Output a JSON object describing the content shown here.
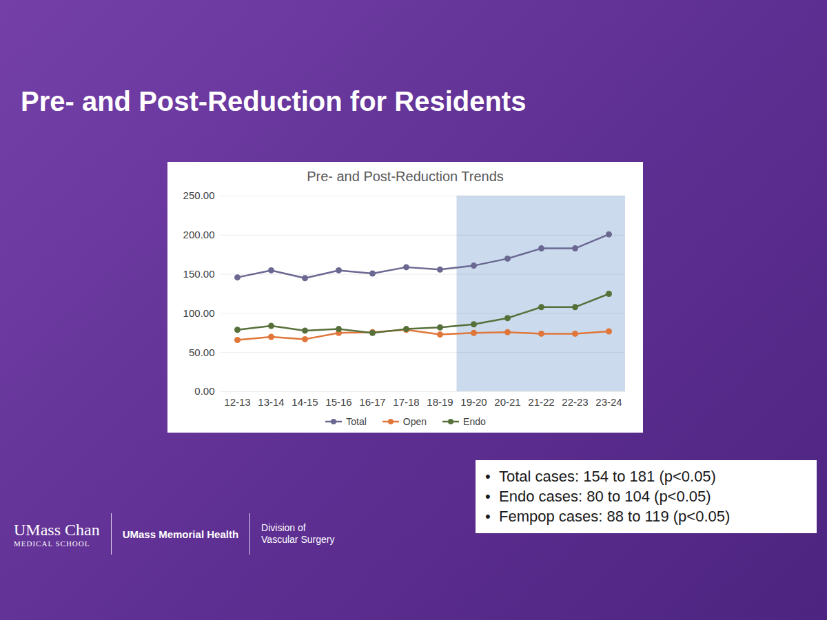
{
  "heading": "Pre- and Post-Reduction for Residents",
  "chart_data": {
    "type": "line",
    "title": "Pre- and Post-Reduction Trends",
    "categories": [
      "12-13",
      "13-14",
      "14-15",
      "15-16",
      "16-17",
      "17-18",
      "18-19",
      "19-20",
      "20-21",
      "21-22",
      "22-23",
      "23-24"
    ],
    "series": [
      {
        "name": "Total",
        "color": "#6a6891",
        "marker": "circle",
        "values": [
          146,
          155,
          145,
          155,
          151,
          159,
          156,
          161,
          170,
          183,
          183,
          201
        ]
      },
      {
        "name": "Open",
        "color": "#e0763a",
        "marker": "circle",
        "values": [
          66,
          70,
          67,
          75,
          76,
          79,
          73,
          75,
          76,
          74,
          74,
          77
        ]
      },
      {
        "name": "Endo",
        "color": "#57703a",
        "marker": "circle",
        "values": [
          79,
          84,
          78,
          80,
          75,
          80,
          82,
          86,
          94,
          108,
          108,
          125
        ]
      }
    ],
    "ylim": [
      0,
      250
    ],
    "yticks": [
      {
        "value": 0,
        "label": "0.00"
      },
      {
        "value": 50,
        "label": "50.00"
      },
      {
        "value": 100,
        "label": "100.00"
      },
      {
        "value": 150,
        "label": "150.00"
      },
      {
        "value": 200,
        "label": "200.00"
      },
      {
        "value": 250,
        "label": "250.00"
      }
    ],
    "grid": true,
    "legend": "bottom",
    "shaded_from": "19-20"
  },
  "bullets": [
    "Total cases: 154 to 181 (p<0.05)",
    "Endo cases: 80 to 104 (p<0.05)",
    "Fempop cases: 88 to 119 (p<0.05)"
  ],
  "footer": [
    "UMass Chan",
    "MEDICAL SCHOOL",
    "UMass Memorial Health",
    "Division of Vascular Surgery"
  ]
}
